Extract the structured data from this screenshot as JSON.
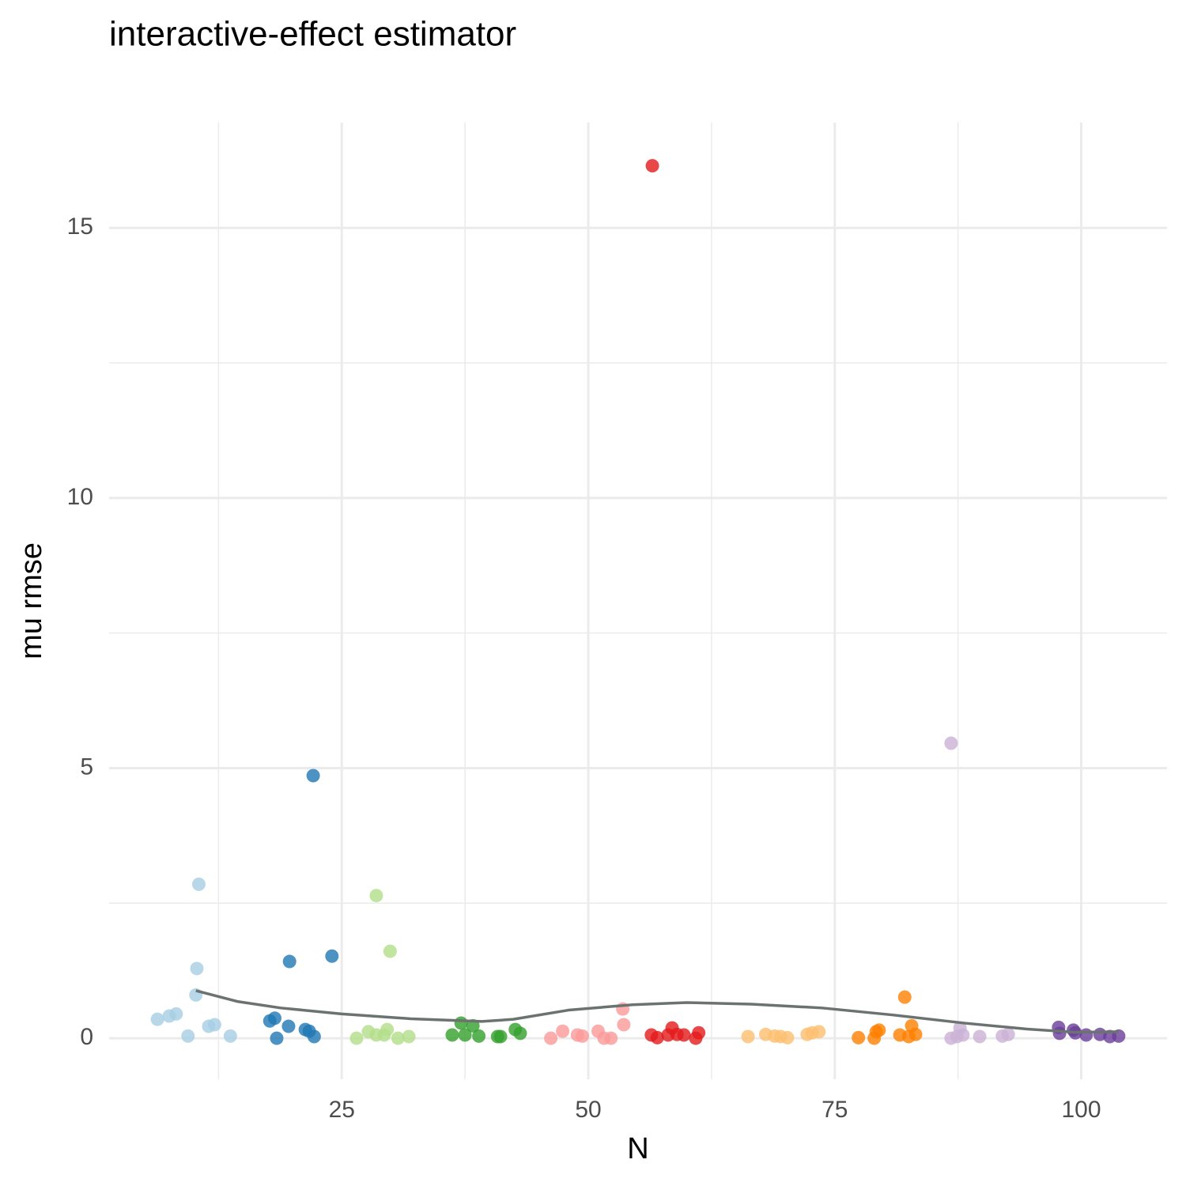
{
  "chart_data": {
    "type": "scatter",
    "title": "interactive-effect estimator",
    "x_label": "N",
    "y_label": "mu rmse",
    "xlim": [
      1.4,
      108.7
    ],
    "ylim": [
      -0.76,
      16.95
    ],
    "xticks": [
      25,
      50,
      75,
      100
    ],
    "yticks": [
      0,
      5,
      10,
      15
    ],
    "grid": true,
    "series": [
      {
        "color": "#a6cee3",
        "x": [
          6.3,
          7.5,
          8.2,
          9.4,
          10.2,
          10.3,
          10.5,
          11.5,
          12.1,
          13.7
        ],
        "values": [
          0.35,
          0.41,
          0.45,
          0.04,
          0.8,
          1.29,
          2.85,
          0.22,
          0.25,
          0.04
        ]
      },
      {
        "color": "#1f78b4",
        "x": [
          17.7,
          18.2,
          18.4,
          19.6,
          19.7,
          21.3,
          21.7,
          22.1,
          22.2,
          24.0
        ],
        "values": [
          0.32,
          0.37,
          0,
          0.22,
          1.42,
          0.16,
          0.13,
          4.86,
          0.03,
          1.52
        ]
      },
      {
        "color": "#b2df8a",
        "x": [
          26.5,
          27.7,
          28.5,
          28.5,
          29.3,
          29.6,
          29.9,
          30.7,
          31.8
        ],
        "values": [
          0,
          0.12,
          2.64,
          0.06,
          0.06,
          0.16,
          1.61,
          0,
          0.03
        ]
      },
      {
        "color": "#33a02c",
        "x": [
          36.2,
          37.1,
          37.5,
          38.3,
          38.9,
          40.8,
          41.1,
          42.6,
          43.1
        ],
        "values": [
          0.06,
          0.28,
          0.06,
          0.23,
          0.04,
          0.03,
          0.03,
          0.16,
          0.09
        ]
      },
      {
        "color": "#fb9a99",
        "x": [
          46.2,
          47.4,
          48.9,
          49.4,
          51.0,
          51.6,
          52.3,
          53.5,
          53.6
        ],
        "values": [
          0,
          0.13,
          0.06,
          0.04,
          0.13,
          0,
          0,
          0.54,
          0.25
        ]
      },
      {
        "color": "#e31a1c",
        "x": [
          56.5,
          56.4,
          57.0,
          58.1,
          58.5,
          59.0,
          59.7,
          60.9,
          61.2
        ],
        "values": [
          16.15,
          0.06,
          0.01,
          0.06,
          0.19,
          0.07,
          0.06,
          0,
          0.1
        ]
      },
      {
        "color": "#fdbf6f",
        "x": [
          66.2,
          68.0,
          68.9,
          69.5,
          70.2,
          72.2,
          72.7,
          73.4
        ],
        "values": [
          0.03,
          0.07,
          0.04,
          0.03,
          0.01,
          0.07,
          0.1,
          0.12
        ]
      },
      {
        "color": "#ff7f00",
        "x": [
          77.4,
          79.0,
          79.2,
          79.5,
          81.6,
          82.1,
          82.5,
          82.8,
          83.2
        ],
        "values": [
          0.01,
          0,
          0.12,
          0.15,
          0.06,
          0.76,
          0.03,
          0.23,
          0.07
        ]
      },
      {
        "color": "#cab2d6",
        "x": [
          86.8,
          86.8,
          87.4,
          87.7,
          88.0,
          89.7,
          92.0,
          92.6
        ],
        "values": [
          5.46,
          0,
          0.03,
          0.19,
          0.06,
          0.03,
          0.04,
          0.07
        ]
      },
      {
        "color": "#6a3d9a",
        "x": [
          97.7,
          97.8,
          99.2,
          99.4,
          100.5,
          101.9,
          102.9,
          103.8
        ],
        "values": [
          0.2,
          0.09,
          0.15,
          0.1,
          0.06,
          0.07,
          0.03,
          0.04
        ]
      }
    ],
    "smooth": {
      "color": "#6b7370",
      "x": [
        10.2,
        14.4,
        18.8,
        25,
        32,
        39.2,
        42.4,
        48,
        54.5,
        60,
        66.5,
        73.7,
        80.9,
        88.1,
        94.5,
        99.4,
        103.8
      ],
      "values": [
        0.88,
        0.68,
        0.56,
        0.45,
        0.36,
        0.31,
        0.35,
        0.52,
        0.62,
        0.66,
        0.63,
        0.56,
        0.43,
        0.28,
        0.17,
        0.11,
        0.12
      ]
    }
  }
}
